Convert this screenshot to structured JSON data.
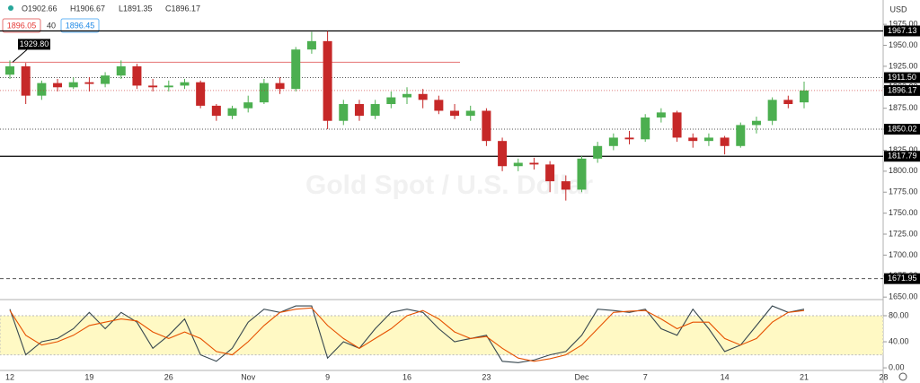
{
  "chart_data": [
    {
      "type": "candlestick",
      "watermark": "Gold Spot / U.S. Dollar",
      "ohlc_header": [
        "O1902.66",
        "H1906.67",
        "L1891.35",
        "C1896.17"
      ],
      "bid": "1896.05",
      "spread": "40",
      "ask": "1896.45",
      "currency": "USD",
      "categories": [
        "12",
        null,
        null,
        null,
        null,
        "19",
        null,
        null,
        null,
        null,
        "26",
        null,
        null,
        null,
        null,
        "Nov",
        null,
        null,
        null,
        null,
        "9",
        null,
        null,
        null,
        null,
        "16",
        null,
        null,
        null,
        null,
        "23",
        null,
        null,
        null,
        null,
        null,
        "Dec",
        null,
        null,
        null,
        "7",
        null,
        null,
        null,
        null,
        "14",
        null,
        null,
        null,
        null,
        "21",
        null,
        null,
        null,
        null,
        "28"
      ],
      "open": [
        1915,
        1925,
        1890,
        1905,
        1900,
        1906,
        1904,
        1914,
        1925,
        1902,
        1900,
        1902,
        1906,
        1878,
        1866,
        1875,
        1882,
        1905,
        1898,
        1945,
        1955,
        1860,
        1880,
        1866,
        1880,
        1888,
        1892,
        1885,
        1872,
        1866,
        1872,
        1836,
        1806,
        1810,
        1808,
        1788,
        1778,
        1815,
        1830,
        1840,
        1838,
        1864,
        1870,
        1840,
        1836,
        1840,
        1830,
        1855,
        1860,
        1885,
        1882,
        null,
        null,
        null,
        null,
        null
      ],
      "high": [
        1932,
        1929,
        1908,
        1910,
        1912,
        1912,
        1918,
        1932,
        1928,
        1910,
        1908,
        1910,
        1908,
        1880,
        1878,
        1890,
        1910,
        1912,
        1948,
        1966,
        1967,
        1885,
        1885,
        1885,
        1895,
        1900,
        1898,
        1890,
        1880,
        1878,
        1875,
        1840,
        1815,
        1816,
        1812,
        1795,
        1818,
        1835,
        1845,
        1848,
        1868,
        1875,
        1872,
        1845,
        1845,
        1842,
        1858,
        1865,
        1888,
        1890,
        1906.67,
        null,
        null,
        null,
        null,
        null
      ],
      "low": [
        1910,
        1880,
        1885,
        1895,
        1898,
        1895,
        1900,
        1910,
        1898,
        1895,
        1895,
        1898,
        1875,
        1860,
        1862,
        1870,
        1880,
        1892,
        1895,
        1940,
        1850,
        1855,
        1860,
        1862,
        1875,
        1880,
        1875,
        1868,
        1862,
        1860,
        1830,
        1800,
        1800,
        1802,
        1775,
        1765,
        1775,
        1810,
        1825,
        1832,
        1835,
        1858,
        1835,
        1828,
        1830,
        1820,
        1828,
        1845,
        1855,
        1875,
        1875,
        null,
        null,
        null,
        null,
        null
      ],
      "close": [
        1925,
        1890,
        1905,
        1900,
        1906,
        1904,
        1914,
        1925,
        1902,
        1900,
        1902,
        1906,
        1878,
        1866,
        1875,
        1882,
        1905,
        1898,
        1945,
        1955,
        1860,
        1880,
        1866,
        1880,
        1888,
        1892,
        1885,
        1872,
        1866,
        1872,
        1836,
        1806,
        1810,
        1808,
        1788,
        1778,
        1815,
        1830,
        1840,
        1838,
        1864,
        1870,
        1840,
        1836,
        1840,
        1830,
        1855,
        1860,
        1885,
        1880,
        1896.17,
        null,
        null,
        null,
        null,
        null
      ],
      "up_color": "#4caf50",
      "down_color": "#c62828",
      "ylim": [
        1647,
        2004
      ],
      "yticks": [
        {
          "value": 1650,
          "label": "1650.00"
        },
        {
          "value": 1675,
          "label": "1675.00"
        },
        {
          "value": 1700,
          "label": "1700.00"
        },
        {
          "value": 1725,
          "label": "1725.00"
        },
        {
          "value": 1750,
          "label": "1750.00"
        },
        {
          "value": 1775,
          "label": "1775.00"
        },
        {
          "value": 1800,
          "label": "1800.00"
        },
        {
          "value": 1825,
          "label": "1825.00"
        },
        {
          "value": 1850,
          "label": "1850.00"
        },
        {
          "value": 1875,
          "label": "1875.00"
        },
        {
          "value": 1900,
          "label": "1900.00"
        },
        {
          "value": 1925,
          "label": "1925.00"
        },
        {
          "value": 1950,
          "label": "1950.00"
        },
        {
          "value": 1975,
          "label": "1975.00"
        }
      ],
      "levels": [
        {
          "value": 1967.13,
          "label": "1967.13",
          "style": "solid"
        },
        {
          "value": 1911.5,
          "label": "1911.50",
          "style": "dotted"
        },
        {
          "value": 1850.02,
          "label": "1850.02",
          "style": "dotted"
        },
        {
          "value": 1817.79,
          "label": "1817.79",
          "style": "solid"
        },
        {
          "value": 1671.95,
          "label": "1671.95",
          "style": "dashed"
        }
      ],
      "last_price": {
        "value": 1896.17,
        "label": "1896.17"
      },
      "high_callout": {
        "value": 1929.8,
        "label": "1929.80",
        "color": "#e57373"
      }
    },
    {
      "type": "line",
      "series": [
        {
          "color": "#37474f",
          "values": [
            90,
            20,
            40,
            45,
            60,
            85,
            60,
            85,
            70,
            30,
            50,
            75,
            20,
            10,
            30,
            70,
            90,
            85,
            95,
            95,
            15,
            40,
            30,
            60,
            85,
            90,
            85,
            60,
            40,
            45,
            50,
            10,
            8,
            12,
            20,
            25,
            50,
            90,
            88,
            85,
            90,
            60,
            50,
            90,
            60,
            25,
            35,
            65,
            95,
            85,
            90,
            null,
            null,
            null,
            null,
            null
          ]
        },
        {
          "color": "#e65100",
          "values": [
            88,
            50,
            35,
            40,
            50,
            65,
            70,
            75,
            72,
            55,
            45,
            55,
            45,
            25,
            20,
            40,
            65,
            85,
            90,
            92,
            65,
            45,
            30,
            45,
            60,
            80,
            88,
            75,
            55,
            45,
            48,
            30,
            15,
            10,
            14,
            20,
            35,
            60,
            85,
            87,
            88,
            75,
            60,
            70,
            70,
            45,
            35,
            45,
            70,
            85,
            88,
            null,
            null,
            null,
            null,
            null
          ]
        }
      ],
      "band": [
        20,
        80
      ],
      "band_color": "#fff9c4",
      "ylim": [
        -4,
        102
      ],
      "yticks": [
        {
          "value": 0,
          "label": "0.00"
        },
        {
          "value": 40,
          "label": "40.00"
        },
        {
          "value": 80,
          "label": "80.00"
        }
      ]
    }
  ]
}
